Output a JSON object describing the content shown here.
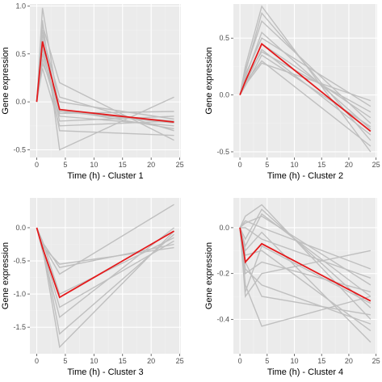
{
  "colors": {
    "panel_bg": "#ebebeb",
    "grid_major": "#ffffff",
    "gene_line": "#bfbfbf",
    "centroid_line": "#e41a1c"
  },
  "chart_data": [
    {
      "type": "line",
      "xlabel": "Time (h) - Cluster 1",
      "ylabel": "Gene expression",
      "xlim": [
        -1.2,
        25.2
      ],
      "ylim": [
        -0.58,
        1.02
      ],
      "xticks": [
        0,
        5,
        10,
        15,
        20,
        25
      ],
      "yticks": [
        -0.5,
        0.0,
        0.5,
        1.0
      ],
      "ytick_labels": [
        "-0.5",
        "0.0",
        "0.5",
        "1.0"
      ],
      "grid": true,
      "x": [
        0,
        1,
        4,
        24
      ],
      "genes": [
        [
          0,
          0.98,
          -0.1,
          -0.2
        ],
        [
          0,
          0.8,
          0.2,
          -0.4
        ],
        [
          0,
          0.85,
          -0.5,
          0.05
        ],
        [
          0,
          0.7,
          0.05,
          -0.3
        ],
        [
          0,
          0.6,
          -0.3,
          -0.35
        ],
        [
          0,
          0.55,
          -0.2,
          -0.15
        ],
        [
          0,
          0.5,
          -0.1,
          -0.22
        ],
        [
          0,
          0.45,
          -0.15,
          -0.25
        ],
        [
          0,
          0.4,
          0.0,
          -0.18
        ],
        [
          0,
          0.35,
          -0.25,
          -0.2
        ],
        [
          0,
          0.65,
          -0.08,
          -0.28
        ],
        [
          0,
          0.75,
          -0.12,
          -0.1
        ]
      ],
      "centroid": [
        0,
        0.63,
        -0.08,
        -0.21
      ]
    },
    {
      "type": "line",
      "xlabel": "Time (h) - Cluster 2",
      "ylabel": "Gene expression",
      "xlim": [
        -1.2,
        25.2
      ],
      "ylim": [
        -0.55,
        0.8
      ],
      "xticks": [
        0,
        5,
        10,
        15,
        20,
        25
      ],
      "yticks": [
        -0.5,
        0.0,
        0.5
      ],
      "ytick_labels": [
        "-0.5",
        "0.0",
        "0.5"
      ],
      "grid": true,
      "x": [
        0,
        1,
        4,
        24
      ],
      "genes": [
        [
          0,
          0.25,
          0.78,
          -0.5
        ],
        [
          0,
          0.2,
          0.72,
          -0.4
        ],
        [
          0,
          0.22,
          0.65,
          -0.25
        ],
        [
          0,
          0.15,
          0.55,
          -0.3
        ],
        [
          0,
          0.18,
          0.5,
          -0.1
        ],
        [
          0,
          0.12,
          0.45,
          -0.2
        ],
        [
          0,
          0.1,
          0.4,
          -0.35
        ],
        [
          0,
          0.14,
          0.38,
          -0.15
        ],
        [
          0,
          0.08,
          0.35,
          -0.28
        ],
        [
          0,
          0.11,
          0.3,
          -0.45
        ],
        [
          0,
          0.09,
          0.28,
          -0.05
        ]
      ],
      "centroid": [
        0,
        0.12,
        0.45,
        -0.32
      ]
    },
    {
      "type": "line",
      "xlabel": "Time (h) - Cluster 3",
      "ylabel": "Gene expression",
      "xlim": [
        -1.2,
        25.2
      ],
      "ylim": [
        -1.9,
        0.45
      ],
      "xticks": [
        0,
        5,
        10,
        15,
        20,
        25
      ],
      "yticks": [
        -1.5,
        -1.0,
        -0.5,
        0.0
      ],
      "ytick_labels": [
        "-1.5",
        "-1.0",
        "-0.5",
        "0.0"
      ],
      "grid": true,
      "x": [
        0,
        1,
        4,
        24
      ],
      "genes": [
        [
          0,
          -0.3,
          -1.8,
          -0.05
        ],
        [
          0,
          -0.25,
          -1.6,
          -0.1
        ],
        [
          0,
          -0.35,
          -1.35,
          0.0
        ],
        [
          0,
          -0.3,
          -1.2,
          -0.2
        ],
        [
          0,
          -0.2,
          -1.0,
          -0.15
        ],
        [
          0,
          -0.25,
          -0.7,
          0.35
        ],
        [
          0,
          -0.28,
          -0.55,
          -0.3
        ],
        [
          0,
          -0.22,
          -0.6,
          -0.25
        ]
      ],
      "centroid": [
        0,
        -0.3,
        -1.05,
        -0.05
      ]
    },
    {
      "type": "line",
      "xlabel": "Time (h) - Cluster 4",
      "ylabel": "Gene expression",
      "xlim": [
        -1.2,
        25.2
      ],
      "ylim": [
        -0.55,
        0.13
      ],
      "xticks": [
        0,
        5,
        10,
        15,
        20,
        25
      ],
      "yticks": [
        -0.4,
        -0.2,
        0.0
      ],
      "ytick_labels": [
        "-0.4",
        "-0.2",
        "0.0"
      ],
      "grid": true,
      "x": [
        0,
        1,
        4,
        24
      ],
      "genes": [
        [
          0,
          0.05,
          0.1,
          -0.4
        ],
        [
          0,
          -0.05,
          0.08,
          -0.35
        ],
        [
          0,
          0.02,
          0.05,
          -0.25
        ],
        [
          0,
          -0.1,
          -0.02,
          -0.5
        ],
        [
          0,
          -0.2,
          -0.15,
          -0.28
        ],
        [
          0,
          -0.3,
          -0.2,
          -0.1
        ],
        [
          0,
          -0.25,
          -0.43,
          -0.3
        ],
        [
          0,
          -0.15,
          -0.3,
          -0.38
        ],
        [
          0,
          0.0,
          -0.05,
          -0.22
        ],
        [
          0,
          -0.12,
          -0.1,
          -0.45
        ],
        [
          0,
          -0.28,
          -0.08,
          -0.33
        ],
        [
          0,
          0.03,
          0.0,
          -0.18
        ],
        [
          0,
          -0.18,
          -0.25,
          -0.42
        ],
        [
          0,
          -0.08,
          0.06,
          -0.3
        ]
      ],
      "centroid": [
        0,
        -0.15,
        -0.07,
        -0.32
      ]
    }
  ]
}
